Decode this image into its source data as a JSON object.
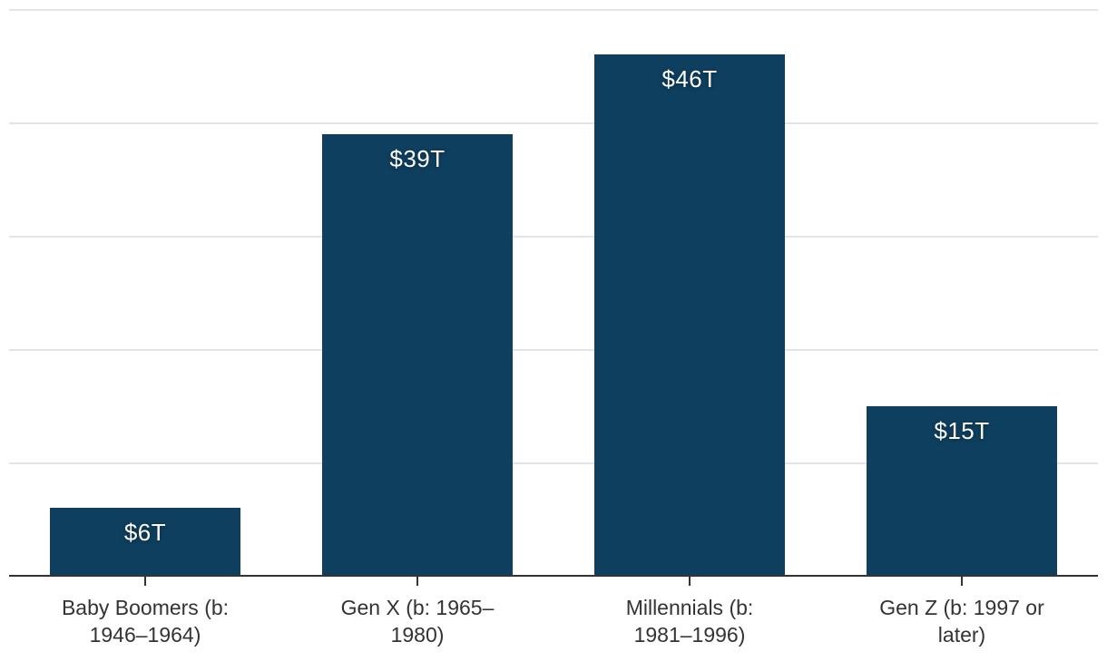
{
  "chart_data": {
    "type": "bar",
    "title": "",
    "xlabel": "",
    "ylabel": "",
    "categories": [
      {
        "label": "Baby Boomers (b: 1946–1964)",
        "lines": [
          "Baby Boomers (b:",
          "1946–1964)"
        ]
      },
      {
        "label": "Gen X (b: 1965–1980)",
        "lines": [
          "Gen X (b: 1965–",
          "1980)"
        ]
      },
      {
        "label": "Millennials (b: 1981–1996)",
        "lines": [
          "Millennials (b:",
          "1981–1996)"
        ]
      },
      {
        "label": "Gen Z (b: 1997 or later)",
        "lines": [
          "Gen Z (b: 1997 or",
          "later)"
        ]
      }
    ],
    "values": [
      6,
      39,
      46,
      15
    ],
    "value_labels": [
      "$6T",
      "$39T",
      "$46T",
      "$15T"
    ],
    "ylim": [
      0,
      50
    ],
    "gridline_step": 10,
    "grid": true,
    "y_tick_labels_shown": false,
    "legend": false,
    "colors": {
      "bar": "#0e3f5e",
      "gridline": "#e4e4e4",
      "axis": "#333333",
      "tick": "#333333",
      "category_text": "#333333",
      "value_text": "#ffffff"
    }
  }
}
